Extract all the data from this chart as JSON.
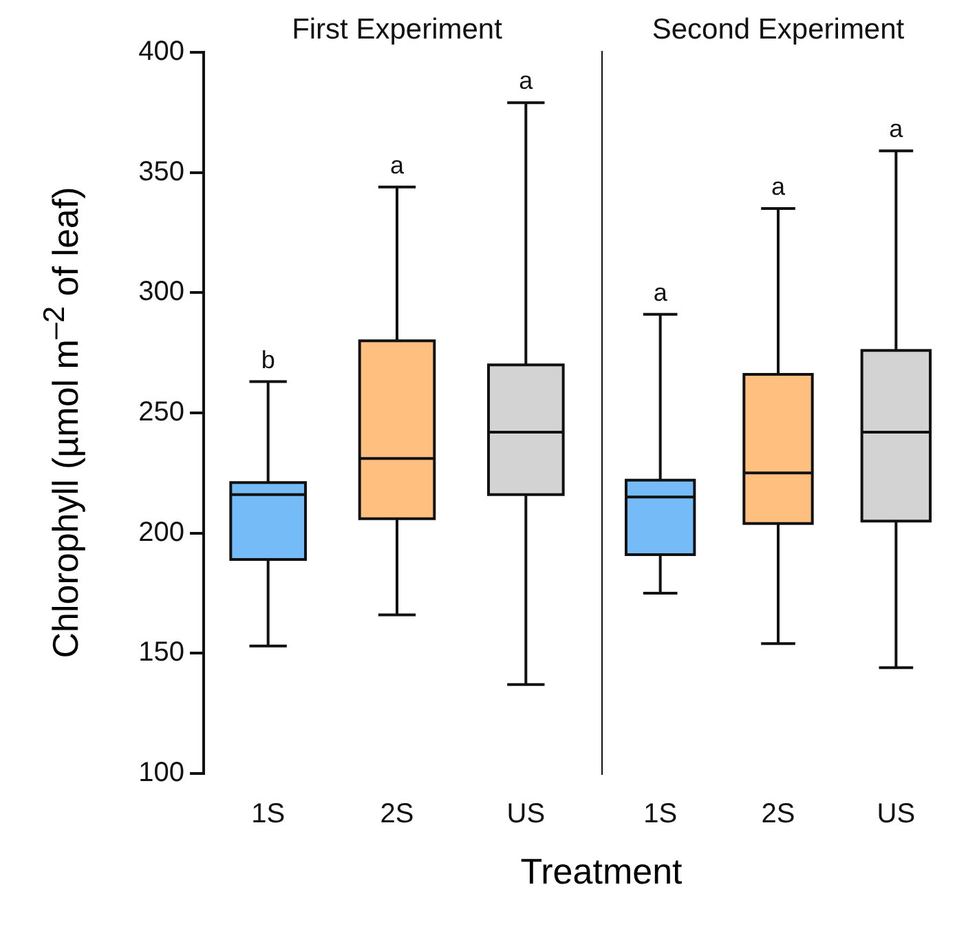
{
  "chart_data": [
    {
      "type": "box",
      "title": "First Experiment",
      "xlabel": "Treatment",
      "ylabel": "Chlorophyll (µmol m$^{–2}$ of leaf)",
      "categories": [
        "1S",
        "2S",
        "US"
      ],
      "colors": [
        "#74bbf7",
        "#ffbf7f",
        "#d3d3d3"
      ],
      "boxes": [
        {
          "low": 153,
          "q1": 189,
          "median": 216,
          "q3": 221,
          "high": 263
        },
        {
          "low": 166,
          "q1": 206,
          "median": 231,
          "q3": 280,
          "high": 344
        },
        {
          "low": 137,
          "q1": 216,
          "median": 242,
          "q3": 270,
          "high": 379
        }
      ],
      "ylim": [
        100,
        400
      ],
      "yticks": [
        100,
        150,
        200,
        250,
        300,
        350,
        400
      ],
      "annotations": [
        {
          "text": "b",
          "x": "1S",
          "y": 263
        },
        {
          "text": "a",
          "x": "2S",
          "y": 344
        },
        {
          "text": "a",
          "x": "US",
          "y": 379
        }
      ]
    },
    {
      "type": "box",
      "title": "Second Experiment",
      "categories": [
        "1S",
        "2S",
        "US"
      ],
      "colors": [
        "#74bbf7",
        "#ffbf7f",
        "#d3d3d3"
      ],
      "boxes": [
        {
          "low": 175,
          "q1": 191,
          "median": 215,
          "q3": 222,
          "high": 291
        },
        {
          "low": 154,
          "q1": 204,
          "median": 225,
          "q3": 266,
          "high": 335
        },
        {
          "low": 144,
          "q1": 205,
          "median": 242,
          "q3": 276,
          "high": 359
        }
      ],
      "ylim": [
        100,
        400
      ],
      "yticks": [
        100,
        150,
        200,
        250,
        300,
        350,
        400
      ],
      "tick_labels": "x",
      "annotations": [
        {
          "text": "a",
          "x": "1S",
          "y": 291
        },
        {
          "text": "a",
          "x": "2S",
          "y": 335
        },
        {
          "text": "a",
          "x": "US",
          "y": 359
        }
      ]
    }
  ]
}
